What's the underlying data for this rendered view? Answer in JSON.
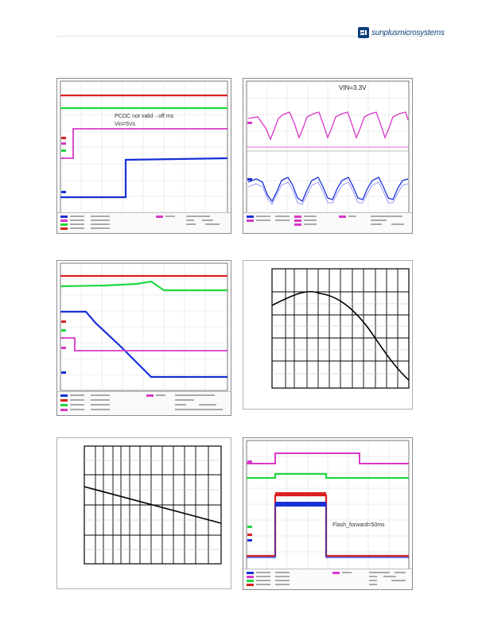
{
  "header": {
    "logo_text": "sunplusmicrosystems",
    "logo_icon": "sp-logo-icon",
    "brand_color": "#0b3f7a"
  },
  "figures": {
    "scope1": {
      "annotation_line1": "PCOC not valid→off ms",
      "annotation_line2": "Vin=5Vs"
    },
    "scope2": {
      "annotation": "VIN=3.3V"
    },
    "scope3": {},
    "plot4": {},
    "plot5": {},
    "scope6": {
      "annotation": "Flash_forward=50ms"
    }
  },
  "colors": {
    "red": "#d92020",
    "green": "#20d840",
    "blue": "#1830d8",
    "magenta": "#d838c8",
    "black": "#000000",
    "grid": "#cfcfcf",
    "grid_dark": "#000000"
  }
}
